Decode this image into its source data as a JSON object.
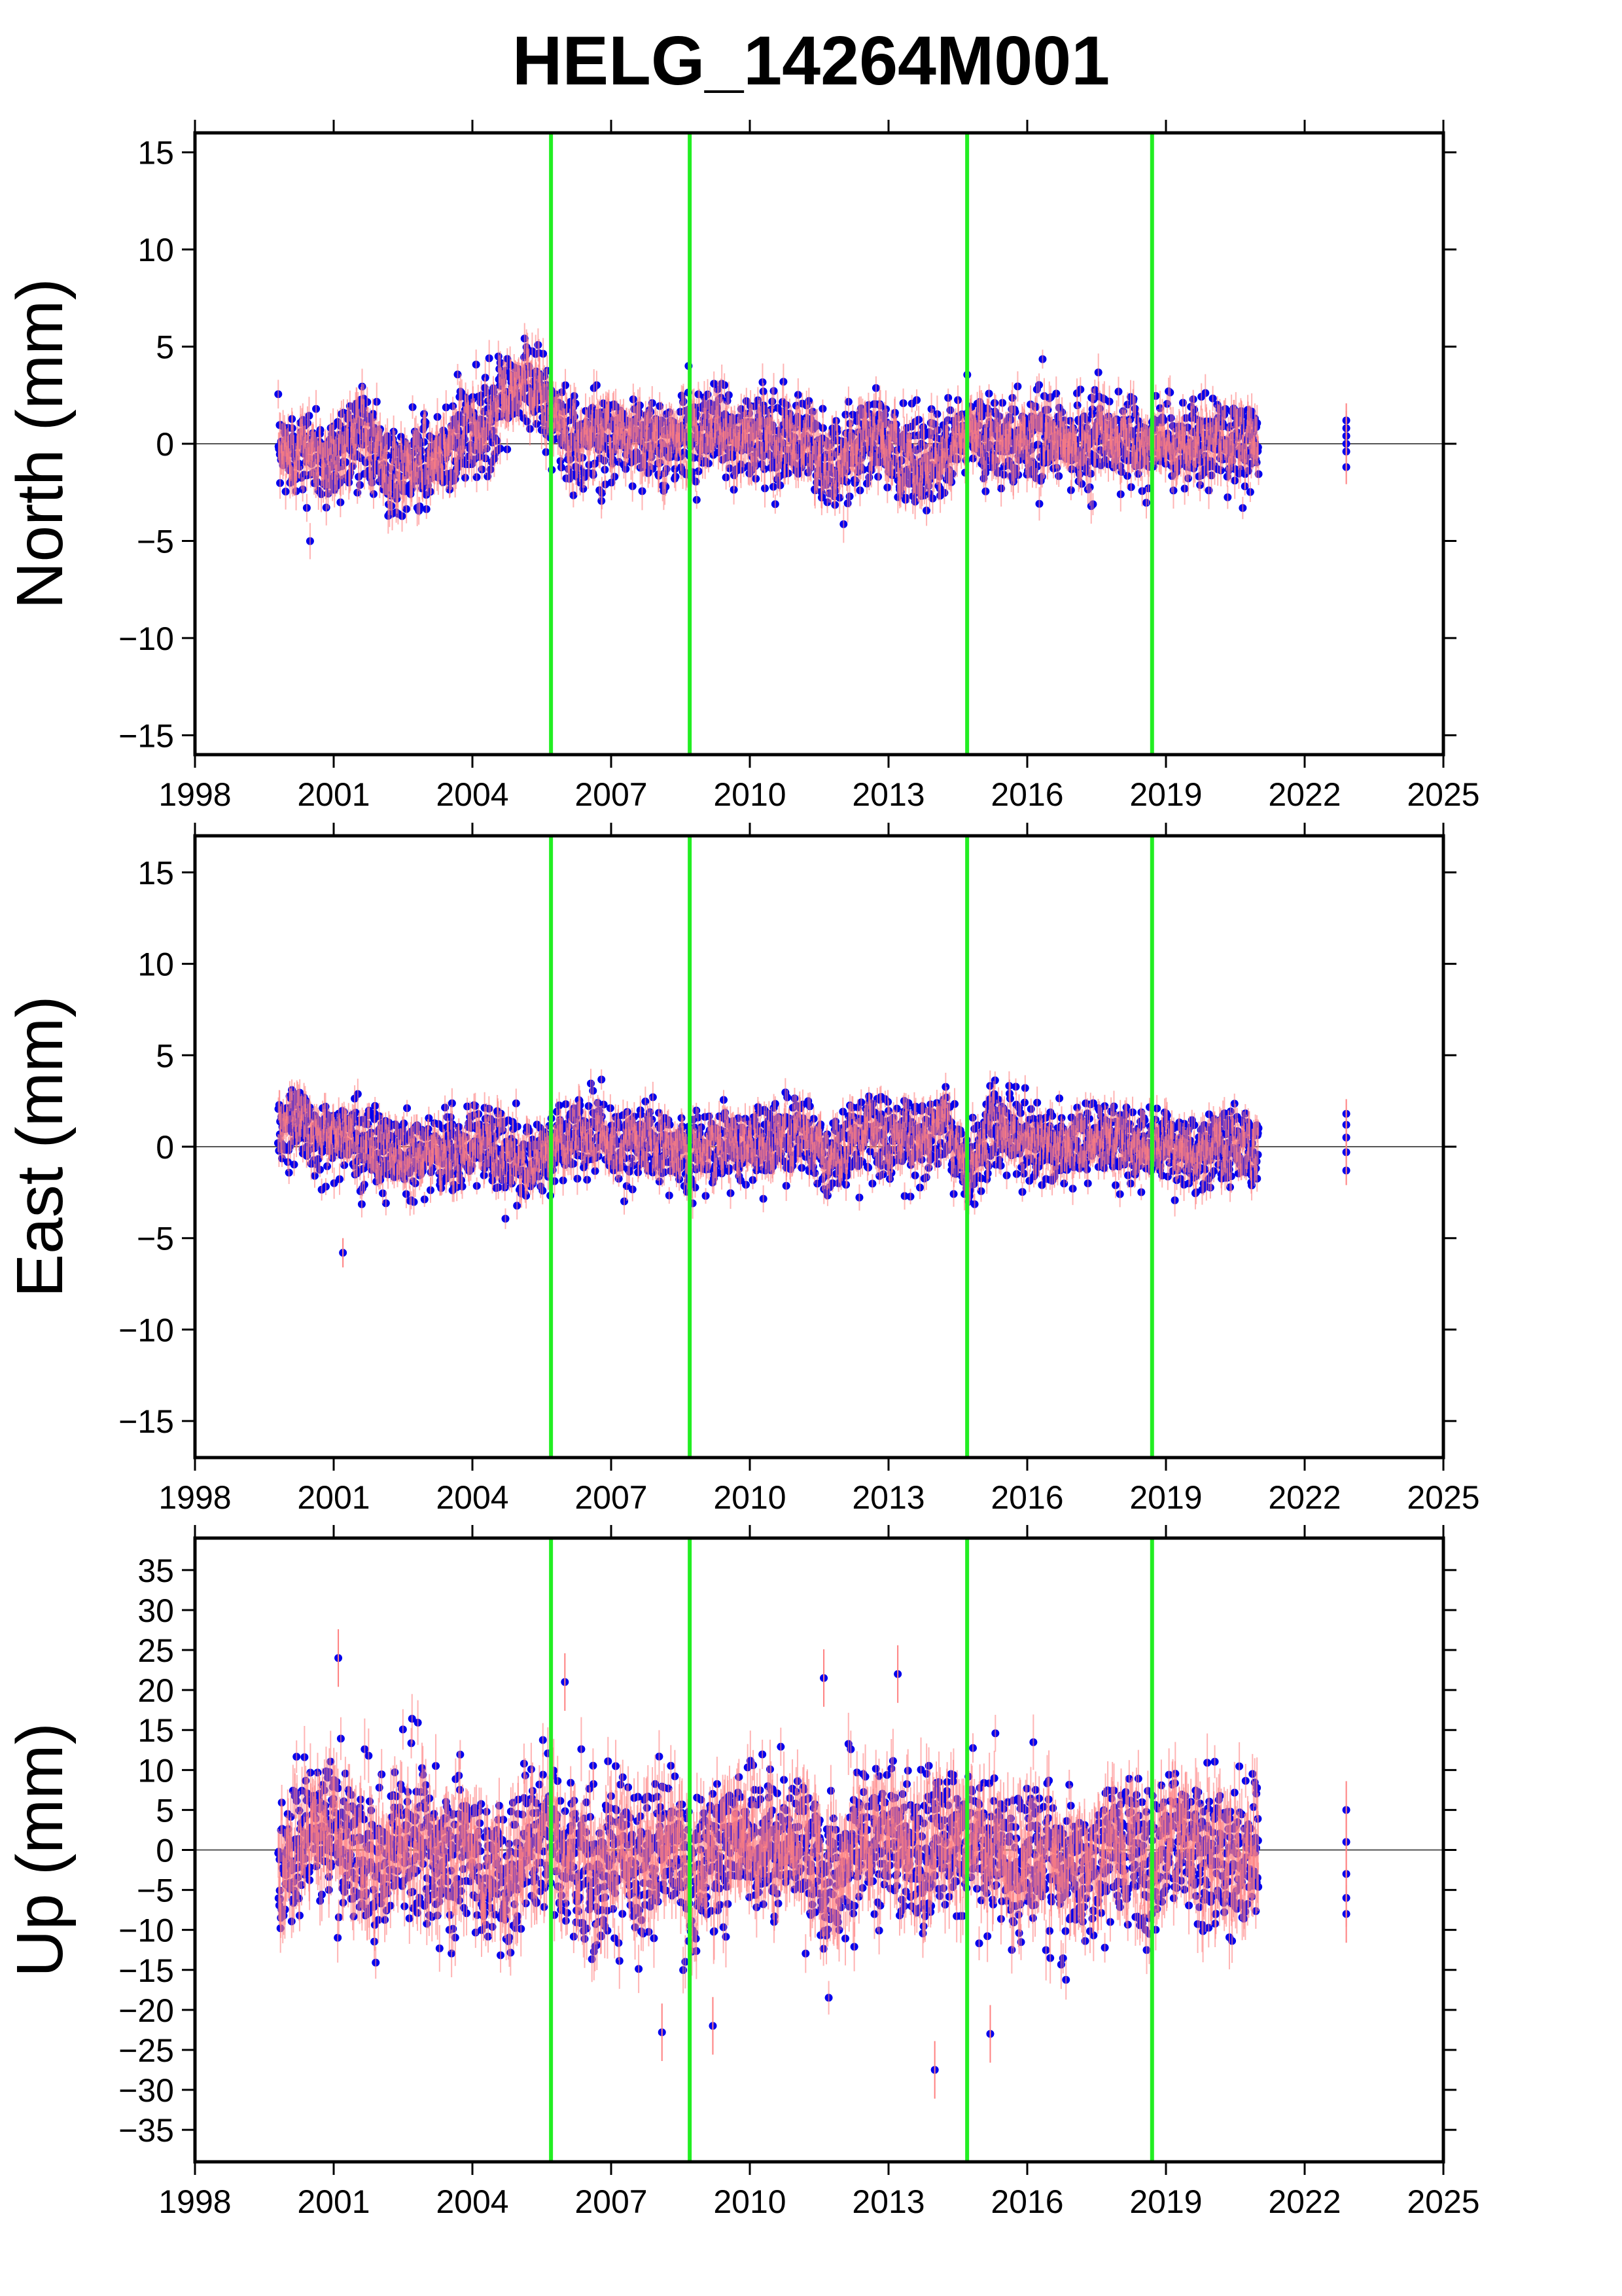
{
  "title": "HELG_14264M001",
  "chart_data": [
    {
      "type": "scatter",
      "ylabel": "North (mm)",
      "xlim": [
        1998,
        2025
      ],
      "ylim": [
        -16,
        16
      ],
      "x_ticks": [
        1998,
        2001,
        2004,
        2007,
        2010,
        2013,
        2016,
        2019,
        2022,
        2025
      ],
      "y_ticks": [
        -15,
        -10,
        -5,
        0,
        5,
        10,
        15
      ],
      "zero_line": true,
      "vertical_lines_x": [
        2005.7,
        2008.7,
        2014.7,
        2018.7
      ],
      "series": [
        {
          "marker": "point-with-error-bar",
          "approx_profile_t": [
            1999.8,
            2000.3,
            2000.8,
            2001.3,
            2001.8,
            2002.3,
            2002.8,
            2003.3,
            2003.8,
            2004.3,
            2004.8,
            2005.2,
            2005.7,
            2006.2,
            2006.7,
            2007.2,
            2007.7,
            2008.2,
            2008.7,
            2009.2,
            2009.7,
            2010.2,
            2010.7,
            2011.2,
            2011.7,
            2012.2,
            2012.7,
            2013.2,
            2013.7,
            2014.2,
            2014.7,
            2015.2,
            2015.7,
            2016.2,
            2016.7,
            2017.2,
            2017.7,
            2018.2,
            2018.7,
            2019.2,
            2019.7,
            2020.2,
            2020.7,
            2021.0
          ],
          "approx_profile_mean": [
            -0.5,
            -0.3,
            -1.0,
            0.0,
            0.5,
            -2.0,
            -1.0,
            -0.5,
            0.5,
            1.0,
            2.5,
            3.5,
            1.5,
            0.0,
            0.5,
            0.5,
            0.5,
            0.0,
            0.5,
            1.0,
            0.0,
            0.5,
            0.0,
            0.5,
            -1.5,
            -0.5,
            0.5,
            -0.5,
            -1.0,
            -0.5,
            0.5,
            0.5,
            0.0,
            0.5,
            0.0,
            0.0,
            0.5,
            0.0,
            0.0,
            0.0,
            0.0,
            0.0,
            0.0,
            0.0
          ],
          "scatter_sd": 1.1,
          "isolated_points_x": [
            2022.9,
            2022.9,
            2022.9,
            2022.9,
            2022.9,
            2022.9
          ],
          "isolated_points_y": [
            1.2,
            0.8,
            0.4,
            0.0,
            -0.4,
            -1.2
          ]
        }
      ]
    },
    {
      "type": "scatter",
      "ylabel": "East (mm)",
      "xlim": [
        1998,
        2025
      ],
      "ylim": [
        -17,
        17
      ],
      "x_ticks": [
        1998,
        2001,
        2004,
        2007,
        2010,
        2013,
        2016,
        2019,
        2022,
        2025
      ],
      "y_ticks": [
        -15,
        -10,
        -5,
        0,
        5,
        10,
        15
      ],
      "zero_line": true,
      "vertical_lines_x": [
        2005.7,
        2008.7,
        2014.7,
        2018.7
      ],
      "series": [
        {
          "marker": "point-with-error-bar",
          "approx_profile_t": [
            1999.8,
            2000.3,
            2000.8,
            2001.3,
            2001.8,
            2002.3,
            2002.8,
            2003.3,
            2003.8,
            2004.3,
            2004.8,
            2005.2,
            2005.7,
            2006.2,
            2006.7,
            2007.2,
            2007.7,
            2008.2,
            2008.7,
            2009.2,
            2009.7,
            2010.2,
            2010.7,
            2011.2,
            2011.7,
            2012.2,
            2012.7,
            2013.2,
            2013.7,
            2014.2,
            2014.7,
            2015.2,
            2015.7,
            2016.2,
            2016.7,
            2017.2,
            2017.7,
            2018.2,
            2018.7,
            2019.2,
            2019.7,
            2020.2,
            2020.7,
            2021.0
          ],
          "approx_profile_mean": [
            1.0,
            1.5,
            0.5,
            0.5,
            0.0,
            -0.5,
            -0.5,
            -0.5,
            0.0,
            0.5,
            -0.5,
            -1.0,
            0.0,
            0.5,
            0.5,
            0.0,
            0.5,
            0.0,
            -0.5,
            0.0,
            0.5,
            0.0,
            0.5,
            0.5,
            -0.5,
            0.0,
            1.0,
            0.5,
            0.5,
            1.5,
            -1.5,
            1.0,
            0.5,
            0.0,
            0.0,
            0.0,
            0.5,
            0.0,
            0.0,
            0.0,
            -0.5,
            0.0,
            0.0,
            0.0
          ],
          "scatter_sd": 1.0,
          "isolated_points_x": [
            2001.2,
            2022.9,
            2022.9,
            2022.9,
            2022.9,
            2022.9
          ],
          "isolated_points_y": [
            -5.8,
            1.8,
            1.2,
            0.5,
            -0.3,
            -1.3
          ]
        }
      ]
    },
    {
      "type": "scatter",
      "ylabel": "Up (mm)",
      "xlim": [
        1998,
        2025
      ],
      "ylim": [
        -39,
        39
      ],
      "x_ticks": [
        1998,
        2001,
        2004,
        2007,
        2010,
        2013,
        2016,
        2019,
        2022,
        2025
      ],
      "y_ticks": [
        -35,
        -30,
        -25,
        -20,
        -15,
        -10,
        -5,
        0,
        5,
        10,
        15,
        20,
        25,
        30,
        35
      ],
      "zero_line": true,
      "vertical_lines_x": [
        2005.7,
        2008.7,
        2014.7,
        2018.7
      ],
      "series": [
        {
          "marker": "point-with-error-bar",
          "approx_profile_t": [
            1999.8,
            2000.3,
            2000.8,
            2001.3,
            2001.8,
            2002.3,
            2002.8,
            2003.3,
            2003.8,
            2004.3,
            2004.8,
            2005.2,
            2005.7,
            2006.2,
            2006.7,
            2007.2,
            2007.7,
            2008.2,
            2008.7,
            2009.2,
            2009.7,
            2010.2,
            2010.7,
            2011.2,
            2011.7,
            2012.2,
            2012.7,
            2013.2,
            2013.7,
            2014.2,
            2014.7,
            2015.2,
            2015.7,
            2016.2,
            2016.7,
            2017.2,
            2017.7,
            2018.2,
            2018.7,
            2019.2,
            2019.7,
            2020.2,
            2020.7,
            2021.0
          ],
          "approx_profile_mean": [
            -2.0,
            2.0,
            3.0,
            2.0,
            -3.0,
            0.0,
            2.0,
            -2.0,
            0.0,
            -2.0,
            -4.0,
            1.0,
            1.0,
            -1.0,
            -4.0,
            1.0,
            -3.0,
            2.0,
            -4.0,
            0.0,
            2.0,
            1.0,
            1.0,
            1.0,
            -4.0,
            0.0,
            2.0,
            1.0,
            -2.0,
            1.0,
            0.0,
            1.0,
            -3.0,
            0.0,
            -2.0,
            -2.0,
            1.0,
            1.0,
            -2.0,
            2.0,
            0.0,
            -2.0,
            0.0,
            -1.0
          ],
          "scatter_sd": 4.5,
          "isolated_points_x": [
            2001.1,
            2006.0,
            2011.6,
            2013.2,
            2014.0,
            2008.1,
            2009.2,
            2015.2,
            2022.9,
            2022.9,
            2022.9,
            2022.9,
            2022.9
          ],
          "isolated_points_y": [
            24.0,
            21.0,
            21.5,
            22.0,
            -27.5,
            -22.8,
            -22.0,
            -23.0,
            5.0,
            1.0,
            -3.0,
            -6.0,
            -8.0
          ]
        }
      ]
    }
  ]
}
